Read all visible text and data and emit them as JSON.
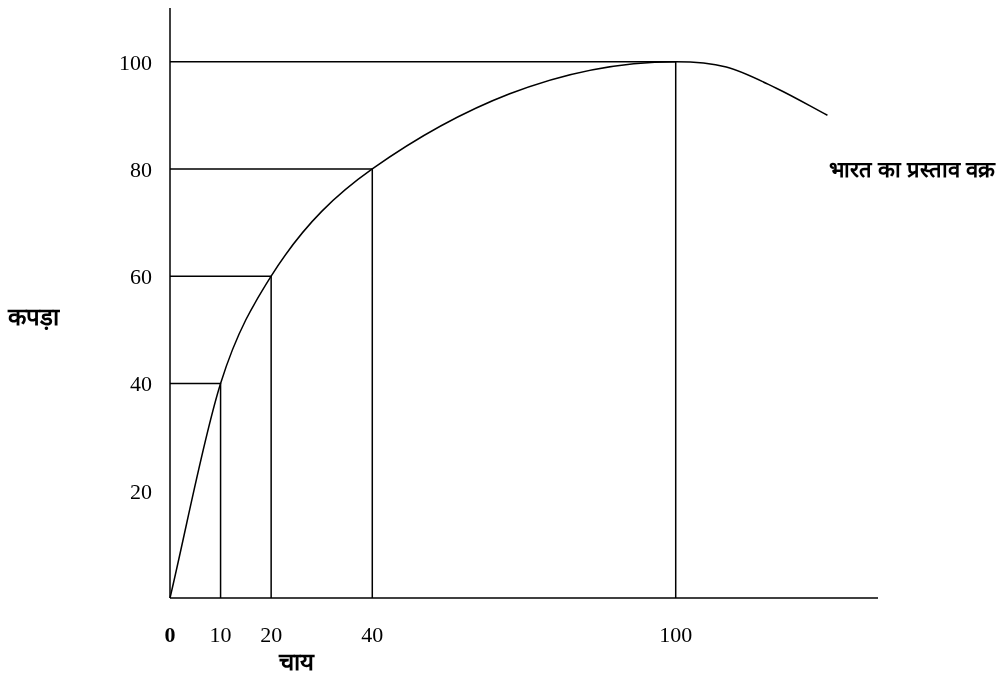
{
  "chart_data": {
    "type": "line",
    "xlabel": "चाय",
    "ylabel": "कपड़ा",
    "xlim": [
      0,
      140
    ],
    "ylim": [
      0,
      110
    ],
    "xticks": [
      0,
      10,
      20,
      40,
      100
    ],
    "yticks": [
      20,
      40,
      60,
      80,
      100
    ],
    "series": [
      {
        "name": "भारत का प्रस्ताव वक्र",
        "color": "#000000",
        "x": [
          0,
          10,
          20,
          40,
          100,
          110,
          120,
          130
        ],
        "values": [
          0,
          40,
          60,
          80,
          100,
          99,
          95,
          90
        ]
      },
      {
        "color": "#000000",
        "x": [
          0,
          10,
          10,
          null,
          0,
          20,
          20,
          null,
          0,
          40,
          40,
          null,
          0,
          100,
          100
        ],
        "values": [
          40,
          40,
          0,
          null,
          60,
          60,
          0,
          null,
          80,
          80,
          0,
          null,
          100,
          100,
          0
        ]
      }
    ]
  }
}
